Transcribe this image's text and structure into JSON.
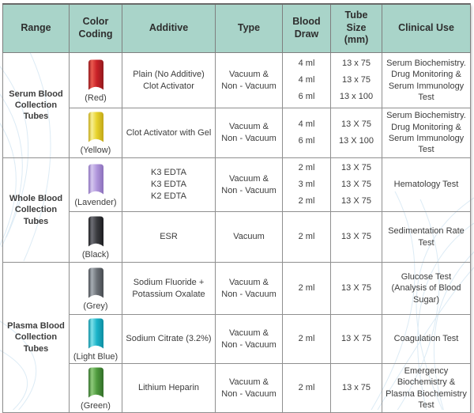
{
  "table": {
    "columns": [
      {
        "id": "range",
        "label": "Range"
      },
      {
        "id": "color-coding",
        "label": "Color Coding"
      },
      {
        "id": "additive",
        "label": "Additive"
      },
      {
        "id": "type",
        "label": "Type"
      },
      {
        "id": "blood-draw",
        "label": "Blood Draw"
      },
      {
        "id": "tube-size",
        "label": "Tube Size (mm)"
      },
      {
        "id": "clinical-use",
        "label": "Clinical Use"
      }
    ],
    "groups": [
      {
        "range": "Serum Blood Collection Tubes",
        "row_count": 2
      },
      {
        "range": "Whole Blood Collection Tubes",
        "row_count": 2
      },
      {
        "range": "Plasma Blood Collection Tubes",
        "row_count": 3
      }
    ],
    "rows": [
      {
        "color_label": "(Red)",
        "tube_icon": "red-tube-icon",
        "tube_colors": {
          "base": "#c92127",
          "light": "#ea5a4f",
          "dark": "#931a1e"
        },
        "additive_lines": [
          "Plain (No Additive)",
          "Clot Activator"
        ],
        "type_lines": [
          "Vacuum &",
          "Non - Vacuum"
        ],
        "blood_draw_lines": [
          "4 ml",
          "4 ml",
          "6 ml"
        ],
        "tube_size_lines": [
          "13 x 75",
          "13 x 75",
          "13 x 100"
        ],
        "clinical_use": "Serum Biochemistry. Drug Monitoring & Serum Immunology Test"
      },
      {
        "color_label": "(Yellow)",
        "tube_icon": "yellow-tube-icon",
        "tube_colors": {
          "base": "#e7d22b",
          "light": "#f8f096",
          "dark": "#c2a719"
        },
        "additive_lines": [
          "Clot Activator with Gel"
        ],
        "type_lines": [
          "Vacuum &",
          "Non - Vacuum"
        ],
        "blood_draw_lines": [
          "4 ml",
          "6 ml"
        ],
        "tube_size_lines": [
          "13 X 75",
          "13 X 100"
        ],
        "clinical_use": "Serum Biochemistry. Drug Monitoring & Serum Immunology Test"
      },
      {
        "color_label": "(Lavender)",
        "tube_icon": "lavender-tube-icon",
        "tube_colors": {
          "base": "#b197dc",
          "light": "#d6c8ef",
          "dark": "#8b70bb"
        },
        "additive_lines": [
          "K3 EDTA",
          "K3 EDTA",
          "K2 EDTA"
        ],
        "type_lines": [
          "Vacuum &",
          "Non - Vacuum"
        ],
        "blood_draw_lines": [
          "2 ml",
          "3 ml",
          "2 ml"
        ],
        "tube_size_lines": [
          "13 X 75",
          "13 X 75",
          "13 X 75"
        ],
        "clinical_use": "Hematology Test"
      },
      {
        "color_label": "(Black)",
        "tube_icon": "black-tube-icon",
        "tube_colors": {
          "base": "#3b3c40",
          "light": "#6e6f76",
          "dark": "#1c1d20"
        },
        "additive_lines": [
          "ESR"
        ],
        "type_lines": [
          "Vacuum"
        ],
        "blood_draw_lines": [
          "2 ml"
        ],
        "tube_size_lines": [
          "13 X 75"
        ],
        "clinical_use": "Sedimentation Rate Test"
      },
      {
        "color_label": "(Grey)",
        "tube_icon": "grey-tube-icon",
        "tube_colors": {
          "base": "#6d7278",
          "light": "#a7adb4",
          "dark": "#474b50"
        },
        "additive_lines": [
          "Sodium Fluoride +",
          "Potassium Oxalate"
        ],
        "type_lines": [
          "Vacuum &",
          "Non - Vacuum"
        ],
        "blood_draw_lines": [
          "2 ml"
        ],
        "tube_size_lines": [
          "13 X 75"
        ],
        "clinical_use": "Glucose Test (Analysis of Blood Sugar)"
      },
      {
        "color_label": "(Light Blue)",
        "tube_icon": "light-blue-tube-icon",
        "tube_colors": {
          "base": "#1cb4c9",
          "light": "#7fe1ea",
          "dark": "#0d8da1"
        },
        "additive_lines": [
          "Sodium Citrate (3.2%)"
        ],
        "type_lines": [
          "Vacuum &",
          "Non - Vacuum"
        ],
        "blood_draw_lines": [
          "2 ml"
        ],
        "tube_size_lines": [
          "13 X 75"
        ],
        "clinical_use": "Coagulation Test"
      },
      {
        "color_label": "(Green)",
        "tube_icon": "green-tube-icon",
        "tube_colors": {
          "base": "#4f9b3e",
          "light": "#8fcb7c",
          "dark": "#336e29"
        },
        "additive_lines": [
          "Lithium Heparin"
        ],
        "type_lines": [
          "Vacuum &",
          "Non - Vacuum"
        ],
        "blood_draw_lines": [
          "2 ml"
        ],
        "tube_size_lines": [
          "13 x 75"
        ],
        "clinical_use": "Emergency Biochemistry & Plasma Biochemistry Test"
      }
    ]
  },
  "colors": {
    "header_bg": "#a9d4c9",
    "grid_border": "#8f8f8f",
    "text": "#3c3c3c",
    "watermark": "#d9e9f4"
  }
}
